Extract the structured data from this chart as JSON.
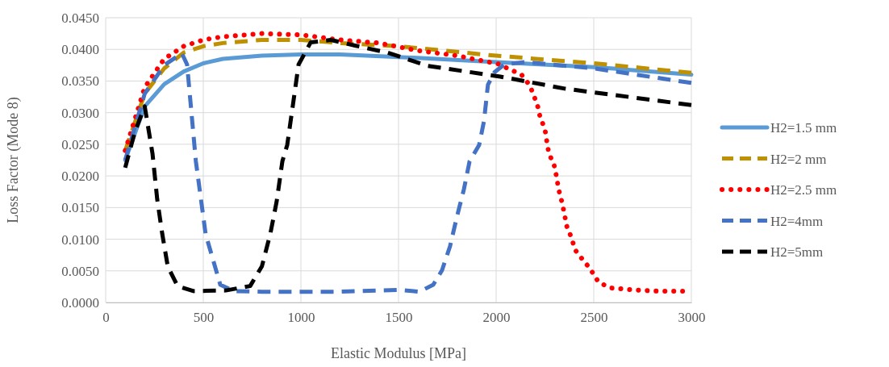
{
  "chart_data": {
    "type": "line",
    "xlabel": "Elastic Modulus [MPa]",
    "ylabel": "Loss Factor (Mode 8)",
    "xlim": [
      0,
      3000
    ],
    "xticks": [
      0,
      500,
      1000,
      1500,
      2000,
      2500,
      3000
    ],
    "ylim": [
      0,
      0.045
    ],
    "yticks": [
      {
        "value": 0,
        "label": "0.0000"
      },
      {
        "value": 0.005,
        "label": "0.0050"
      },
      {
        "value": 0.01,
        "label": "0.0100"
      },
      {
        "value": 0.015,
        "label": "0.0150"
      },
      {
        "value": 0.02,
        "label": "0.0200"
      },
      {
        "value": 0.025,
        "label": "0.0250"
      },
      {
        "value": 0.03,
        "label": "0.0300"
      },
      {
        "value": 0.035,
        "label": "0.0350"
      },
      {
        "value": 0.04,
        "label": "0.0400"
      },
      {
        "value": 0.045,
        "label": "0.0450"
      }
    ],
    "grid": true,
    "legend": "right",
    "marker": "none",
    "series": [
      {
        "name": "H2=1.5 mm",
        "color": "#5b9bd5",
        "line_style": "solid",
        "x": [
          100,
          200,
          300,
          400,
          500,
          600,
          800,
          1000,
          1200,
          1500,
          2000,
          2500,
          3000
        ],
        "values": [
          0.0225,
          0.031,
          0.0345,
          0.0365,
          0.0378,
          0.0385,
          0.039,
          0.0392,
          0.0392,
          0.0388,
          0.038,
          0.0372,
          0.036
        ]
      },
      {
        "name": "H2=2 mm",
        "color": "#bf9000",
        "line_style": "dashed",
        "x": [
          100,
          200,
          300,
          400,
          500,
          600,
          800,
          1000,
          1200,
          1500,
          2000,
          2500,
          3000
        ],
        "values": [
          0.024,
          0.033,
          0.037,
          0.0395,
          0.0405,
          0.041,
          0.0415,
          0.0415,
          0.041,
          0.0405,
          0.039,
          0.0378,
          0.0363
        ]
      },
      {
        "name": "H2=2.5 mm",
        "color": "#ff0000",
        "line_style": "dotted",
        "x": [
          100,
          200,
          300,
          400,
          500,
          600,
          800,
          1000,
          1200,
          1400,
          1600,
          1800,
          2010,
          2130,
          2170,
          2190,
          2215,
          2225,
          2250,
          2260,
          2270,
          2297,
          2310,
          2320,
          2335,
          2350,
          2360,
          2385,
          2405,
          2440,
          2480,
          2525,
          2585,
          2700,
          2825,
          2955
        ],
        "values": [
          0.024,
          0.034,
          0.0385,
          0.0405,
          0.0415,
          0.042,
          0.0425,
          0.0423,
          0.0415,
          0.041,
          0.0398,
          0.039,
          0.0377,
          0.036,
          0.0344,
          0.033,
          0.0308,
          0.0293,
          0.0274,
          0.0254,
          0.0236,
          0.0217,
          0.0198,
          0.0179,
          0.0161,
          0.014,
          0.0122,
          0.0103,
          0.0083,
          0.0069,
          0.0054,
          0.0032,
          0.0023,
          0.002,
          0.0018,
          0.0018
        ]
      },
      {
        "name": "H2=4mm",
        "color": "#4472c4",
        "line_style": "dashed",
        "x": [
          100,
          200,
          300,
          390,
          417,
          462,
          512,
          587,
          657,
          800,
          1000,
          1200,
          1500,
          1607,
          1678,
          1723,
          1764,
          1798,
          1835,
          1864,
          1913,
          1938,
          1958,
          1992,
          2041,
          2145,
          2500,
          3000
        ],
        "values": [
          0.0225,
          0.033,
          0.0375,
          0.0394,
          0.0376,
          0.0223,
          0.0108,
          0.0028,
          0.0018,
          0.0017,
          0.0017,
          0.0017,
          0.002,
          0.0017,
          0.0028,
          0.0051,
          0.0089,
          0.0134,
          0.0179,
          0.0223,
          0.0249,
          0.0287,
          0.0344,
          0.0364,
          0.0376,
          0.038,
          0.037,
          0.0347
        ]
      },
      {
        "name": "H2=5mm",
        "color": "#000000",
        "line_style": "dashed",
        "x": [
          100,
          150,
          200,
          240,
          264,
          290,
          318,
          368,
          450,
          615,
          740,
          800,
          843,
          876,
          905,
          930,
          959,
          988,
          1050,
          1153,
          1277,
          1442,
          1649,
          2021,
          2351,
          3000
        ],
        "values": [
          0.0213,
          0.027,
          0.031,
          0.0235,
          0.0163,
          0.0108,
          0.0057,
          0.0026,
          0.0018,
          0.0019,
          0.0026,
          0.0057,
          0.0108,
          0.016,
          0.0223,
          0.0249,
          0.0312,
          0.0376,
          0.0411,
          0.0415,
          0.0406,
          0.0395,
          0.0374,
          0.0357,
          0.0338,
          0.0312
        ]
      }
    ]
  }
}
